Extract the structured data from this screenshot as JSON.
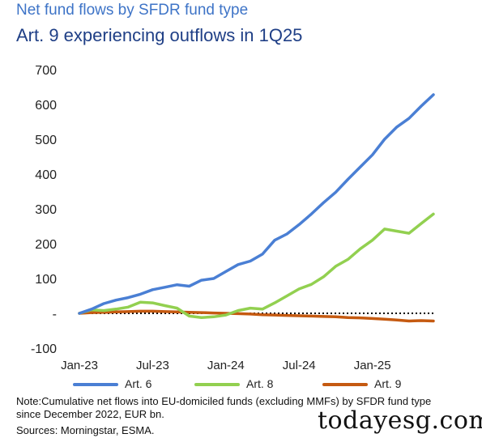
{
  "header": {
    "title": "Net fund flows by SFDR fund type",
    "subtitle": "Art. 9 experiencing outflows in 1Q25"
  },
  "chart_data": {
    "type": "line",
    "title": "Net fund flows by SFDR fund type",
    "subtitle": "Art. 9 experiencing outflows in 1Q25",
    "x": [
      "Jan-23",
      "Feb-23",
      "Mar-23",
      "Apr-23",
      "May-23",
      "Jun-23",
      "Jul-23",
      "Aug-23",
      "Sep-23",
      "Oct-23",
      "Nov-23",
      "Dec-23",
      "Jan-24",
      "Feb-24",
      "Mar-24",
      "Apr-24",
      "May-24",
      "Jun-24",
      "Jul-24",
      "Aug-24",
      "Sep-24",
      "Oct-24",
      "Nov-24",
      "Dec-24",
      "Jan-25",
      "Feb-25",
      "Mar-25",
      "Apr-25",
      "May-25",
      "Jun-25"
    ],
    "x_tick_labels": [
      "Jan-23",
      "Jul-23",
      "Jan-24",
      "Jul-24",
      "Jan-25"
    ],
    "y_tick_labels": [
      "-100",
      "-",
      "100",
      "200",
      "300",
      "400",
      "500",
      "600",
      "700"
    ],
    "ylim": [
      -100,
      700
    ],
    "zero_line": "dotted",
    "legend_position": "bottom",
    "series": [
      {
        "name": "Art. 6",
        "color": "#4a7fd4",
        "values": [
          0,
          12,
          28,
          38,
          45,
          55,
          68,
          75,
          82,
          78,
          95,
          100,
          120,
          140,
          150,
          170,
          210,
          228,
          255,
          285,
          318,
          348,
          385,
          420,
          455,
          500,
          535,
          560,
          595,
          628
        ]
      },
      {
        "name": "Art. 8",
        "color": "#92d050",
        "values": [
          0,
          10,
          8,
          12,
          18,
          32,
          30,
          22,
          15,
          -8,
          -12,
          -10,
          -5,
          8,
          15,
          12,
          30,
          50,
          70,
          83,
          105,
          135,
          155,
          185,
          210,
          242,
          236,
          230,
          258,
          285
        ]
      },
      {
        "name": "Art. 9",
        "color": "#c55a11",
        "values": [
          0,
          2,
          3,
          4,
          5,
          6,
          6,
          5,
          4,
          3,
          2,
          1,
          0,
          -1,
          -2,
          -4,
          -5,
          -6,
          -7,
          -8,
          -9,
          -10,
          -12,
          -13,
          -15,
          -17,
          -19,
          -22,
          -21,
          -22
        ]
      }
    ]
  },
  "note": "Note:Cumulative net flows into EU-domiciled funds (excluding MMFs) by SFDR fund type since December 2022, EUR bn.",
  "source": "Sources: Morningstar, ESMA.",
  "watermark": "todayesg.com"
}
